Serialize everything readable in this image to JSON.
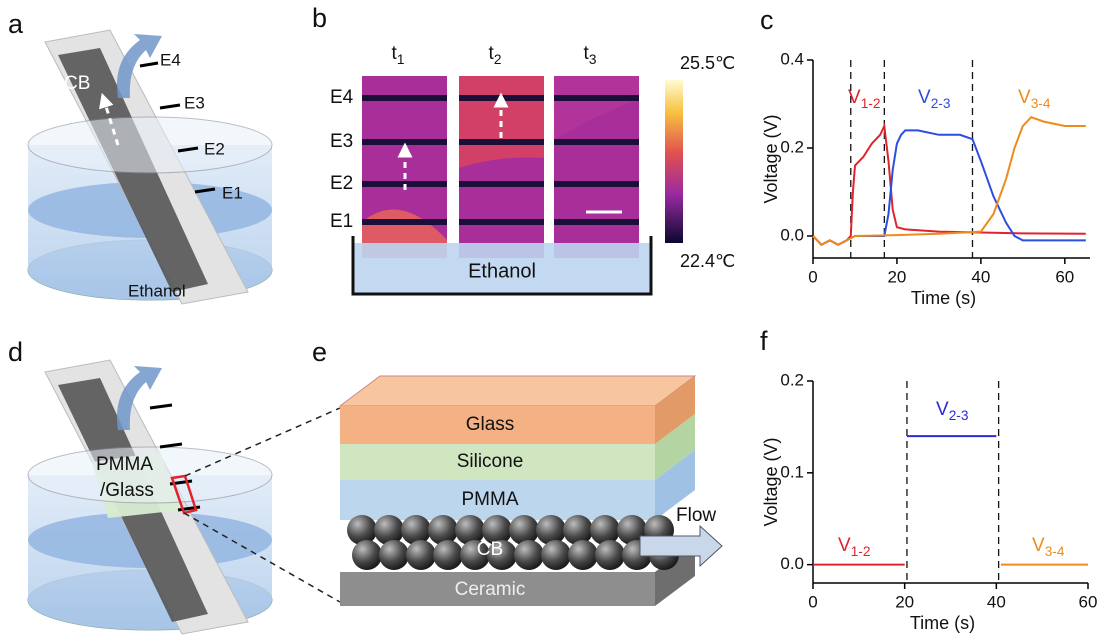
{
  "panel_a": {
    "label": "a",
    "cb": "CB",
    "electrodes": [
      "E4",
      "E3",
      "E2",
      "E1"
    ],
    "liquid": "Ethanol"
  },
  "panel_b": {
    "label": "b",
    "times": [
      "t1",
      "t2",
      "t3"
    ],
    "electrodes": [
      "E4",
      "E3",
      "E2",
      "E1"
    ],
    "colorbar_max": "25.5℃",
    "colorbar_min": "22.4℃",
    "liquid": "Ethanol"
  },
  "panel_d": {
    "label": "d",
    "sample": [
      "PMMA",
      "/Glass"
    ]
  },
  "panel_e": {
    "label": "e",
    "layers": [
      "Glass",
      "Silicone",
      "PMMA",
      "CB",
      "Ceramic"
    ],
    "flow": "Flow"
  },
  "chart_data": [
    {
      "type": "line",
      "label": "c",
      "x_label": "Time (s)",
      "y_label": "Voltage (V)",
      "xlim": [
        0,
        66
      ],
      "ylim": [
        -0.05,
        0.4
      ],
      "xticks": [
        0,
        20,
        40,
        60
      ],
      "yticks": [
        {
          "value": 0,
          "label": "0.0"
        },
        0.2,
        0.4
      ],
      "vlines": [
        9,
        17,
        38
      ],
      "series": [
        {
          "name": "V1-2",
          "color": "#e0242b",
          "x": [
            0,
            2,
            4,
            6,
            8,
            9,
            9.5,
            10,
            12,
            14,
            16,
            17,
            18,
            19,
            20,
            22,
            30,
            40,
            50,
            65
          ],
          "values": [
            0,
            -0.02,
            -0.01,
            -0.02,
            -0.01,
            0,
            0.1,
            0.16,
            0.18,
            0.21,
            0.23,
            0.25,
            0.17,
            0.06,
            0.02,
            0.015,
            0.01,
            0.008,
            0.006,
            0.005
          ]
        },
        {
          "name": "V2-3",
          "color": "#2b4de0",
          "x": [
            0,
            2,
            4,
            6,
            8,
            10,
            17,
            18,
            19,
            20,
            21,
            22,
            25,
            30,
            35,
            38,
            40,
            43,
            46,
            48,
            50,
            65
          ],
          "values": [
            0,
            -0.02,
            -0.01,
            -0.02,
            -0.01,
            0,
            0,
            0.05,
            0.15,
            0.21,
            0.23,
            0.24,
            0.24,
            0.23,
            0.23,
            0.22,
            0.17,
            0.09,
            0.03,
            0,
            -0.01,
            -0.01
          ]
        },
        {
          "name": "V3-4",
          "color": "#f08a1c",
          "x": [
            0,
            2,
            4,
            6,
            8,
            10,
            20,
            30,
            40,
            43,
            46,
            48,
            50,
            52,
            55,
            60,
            65
          ],
          "values": [
            0,
            -0.02,
            -0.01,
            -0.02,
            -0.01,
            0,
            0.002,
            0.005,
            0.01,
            0.05,
            0.13,
            0.2,
            0.25,
            0.27,
            0.26,
            0.25,
            0.25
          ]
        }
      ]
    },
    {
      "type": "line",
      "label": "f",
      "x_label": "Time (s)",
      "y_label": "Voltage (V)",
      "xlim": [
        0,
        60
      ],
      "ylim": [
        -0.02,
        0.2
      ],
      "xticks": [
        0,
        20,
        40,
        60
      ],
      "yticks": [
        {
          "value": 0,
          "label": "0.0"
        },
        0.1,
        0.2
      ],
      "vlines": [
        20.5,
        40.5
      ],
      "series": [
        {
          "name": "V1-2",
          "color": "#e0242b",
          "x": [
            0,
            20
          ],
          "values": [
            0,
            0
          ]
        },
        {
          "name": "V2-3",
          "color": "#2b2bd6",
          "x": [
            20.5,
            40
          ],
          "values": [
            0.14,
            0.14
          ]
        },
        {
          "name": "V3-4",
          "color": "#f08a1c",
          "x": [
            41,
            60
          ],
          "values": [
            0,
            0
          ]
        }
      ]
    }
  ]
}
